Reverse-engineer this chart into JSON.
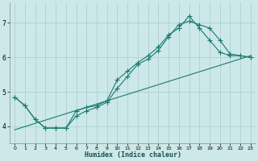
{
  "title": "",
  "xlabel": "Humidex (Indice chaleur)",
  "bg_color": "#cce8e8",
  "grid_color": "#aacccc",
  "line_color": "#1a7a6e",
  "xlim": [
    -0.5,
    23.5
  ],
  "ylim": [
    3.5,
    7.6
  ],
  "yticks": [
    4,
    5,
    6,
    7
  ],
  "xticks": [
    0,
    1,
    2,
    3,
    4,
    5,
    6,
    7,
    8,
    9,
    10,
    11,
    12,
    13,
    14,
    15,
    16,
    17,
    18,
    19,
    20,
    21,
    22,
    23
  ],
  "line1_x": [
    0,
    1,
    2,
    3,
    4,
    5,
    6,
    7,
    8,
    9,
    10,
    11,
    12,
    13,
    14,
    15,
    16,
    17,
    18,
    19,
    20,
    21,
    22,
    23
  ],
  "line1_y": [
    4.85,
    4.6,
    4.2,
    3.95,
    3.95,
    3.95,
    4.45,
    4.55,
    4.6,
    4.75,
    5.35,
    5.6,
    5.85,
    6.05,
    6.3,
    6.65,
    6.85,
    7.2,
    6.85,
    6.5,
    6.15,
    6.05,
    6.05,
    6.0
  ],
  "line2_x": [
    0,
    1,
    2,
    3,
    4,
    5,
    6,
    7,
    8,
    9,
    10,
    11,
    12,
    13,
    14,
    15,
    16,
    17,
    18,
    19,
    20,
    21,
    22,
    23
  ],
  "line2_y": [
    4.85,
    4.6,
    4.2,
    3.95,
    3.95,
    3.95,
    4.3,
    4.45,
    4.55,
    4.7,
    5.1,
    5.45,
    5.8,
    5.95,
    6.2,
    6.6,
    6.95,
    7.05,
    6.95,
    6.85,
    6.5,
    6.1,
    6.05,
    6.0
  ],
  "line3_x": [
    0,
    23
  ],
  "line3_y": [
    3.9,
    6.05
  ],
  "marker_size": 2.0,
  "linewidth": 0.8
}
